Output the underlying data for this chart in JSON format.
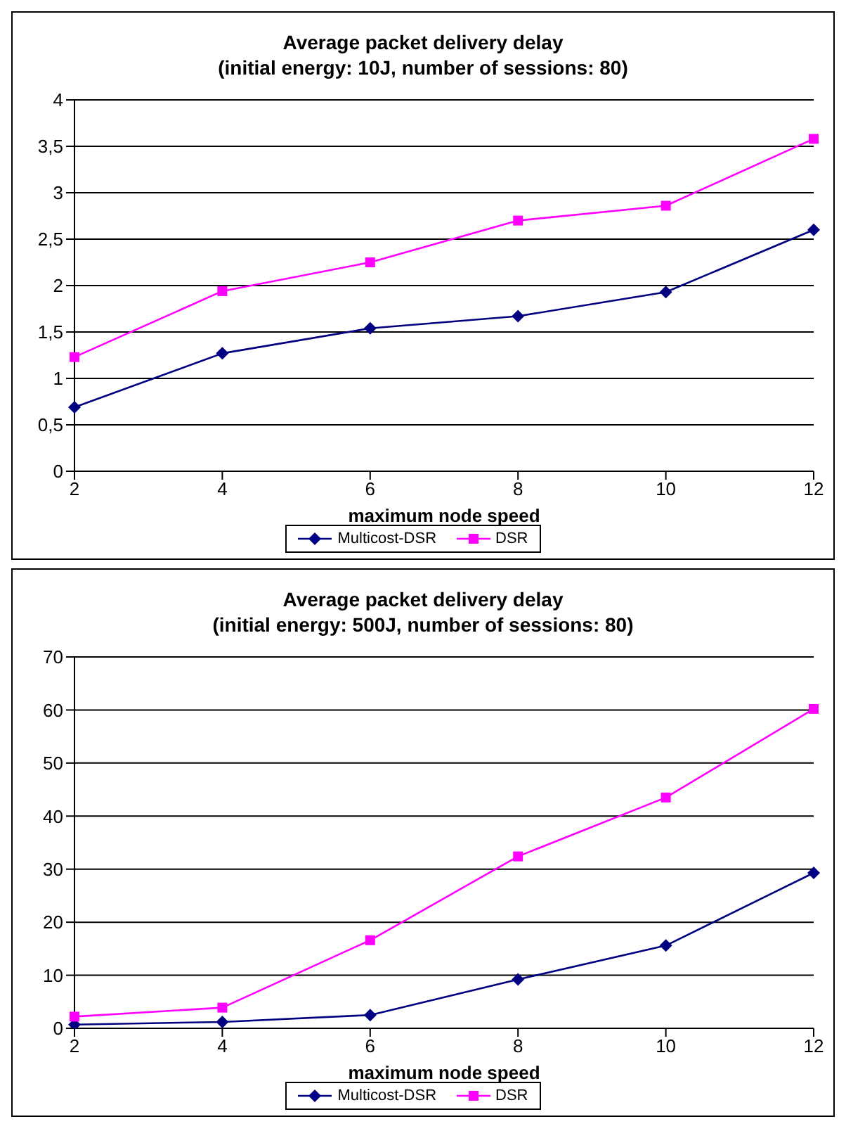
{
  "chart_data": [
    {
      "type": "line",
      "title": "Average packet delivery delay",
      "subtitle": "(initial energy: 10J, number of sessions: 80)",
      "xlabel": "maximum node speed",
      "categories": [
        "2",
        "4",
        "6",
        "8",
        "10",
        "12"
      ],
      "series": [
        {
          "name": "Multicost-DSR",
          "color": "#000080",
          "marker": "diamond",
          "values": [
            0.69,
            1.27,
            1.54,
            1.67,
            1.93,
            2.6
          ]
        },
        {
          "name": "DSR",
          "color": "#ff00ff",
          "marker": "square",
          "values": [
            1.23,
            1.94,
            2.25,
            2.7,
            2.86,
            3.58
          ]
        }
      ],
      "ylim": [
        0,
        4
      ],
      "yticks": [
        0,
        {
          "value": 0.5,
          "label": "0,5"
        },
        1,
        {
          "value": 1.5,
          "label": "1,5"
        },
        2,
        {
          "value": 2.5,
          "label": "2,5"
        },
        3,
        {
          "value": 3.5,
          "label": "3,5"
        },
        4
      ],
      "grid": "y",
      "legend": "bottom"
    },
    {
      "type": "line",
      "title": "Average packet delivery delay",
      "subtitle": "(initial energy: 500J, number of sessions: 80)",
      "xlabel": "maximum node speed",
      "categories": [
        "2",
        "4",
        "6",
        "8",
        "10",
        "12"
      ],
      "series": [
        {
          "name": "Multicost-DSR",
          "color": "#000080",
          "marker": "diamond",
          "values": [
            0.7,
            1.2,
            2.5,
            9.2,
            15.6,
            29.3
          ]
        },
        {
          "name": "DSR",
          "color": "#ff00ff",
          "marker": "square",
          "values": [
            2.2,
            3.9,
            16.6,
            32.4,
            43.5,
            60.2
          ]
        }
      ],
      "ylim": [
        0,
        70
      ],
      "yticks": [
        0,
        10,
        20,
        30,
        40,
        50,
        60,
        70
      ],
      "grid": "y",
      "legend": "bottom"
    }
  ]
}
